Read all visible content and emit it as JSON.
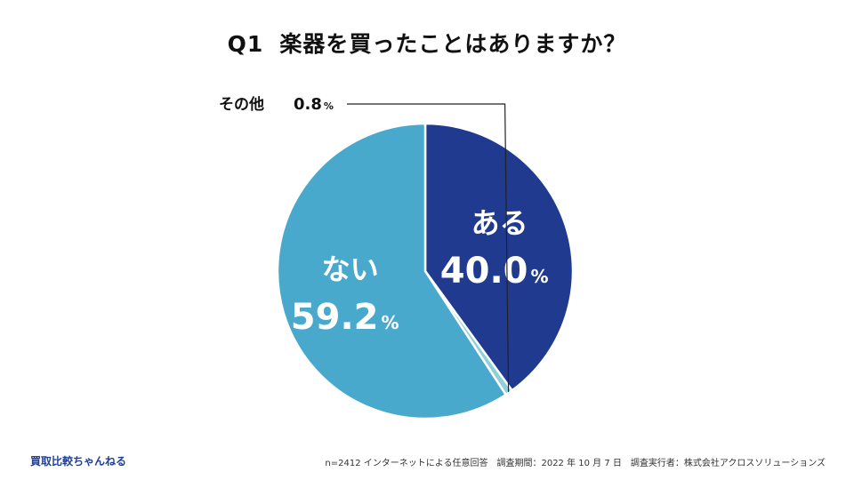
{
  "title": {
    "prefix": "Q1",
    "question": "楽器を買ったことはありますか？"
  },
  "chart_data": {
    "type": "pie",
    "title": "Q1 楽器を買ったことはありますか？",
    "slices": [
      {
        "label": "ある",
        "value": 40.0,
        "color": "#1f3a8f",
        "text_color": "#ffffff"
      },
      {
        "label": "その他",
        "value": 0.8,
        "color": "#8fd0d8",
        "text_color": "#111111"
      },
      {
        "label": "ない",
        "value": 59.2,
        "color": "#48a9cd",
        "text_color": "#ffffff"
      }
    ],
    "unit": "%"
  },
  "footer": {
    "brand": "買取比較ちゃんねる",
    "note": "n=2412 インターネットによる任意回答　調査期間：2022 年 10 月 7 日　調査実行者：株式会社アクロスソリューションズ"
  }
}
